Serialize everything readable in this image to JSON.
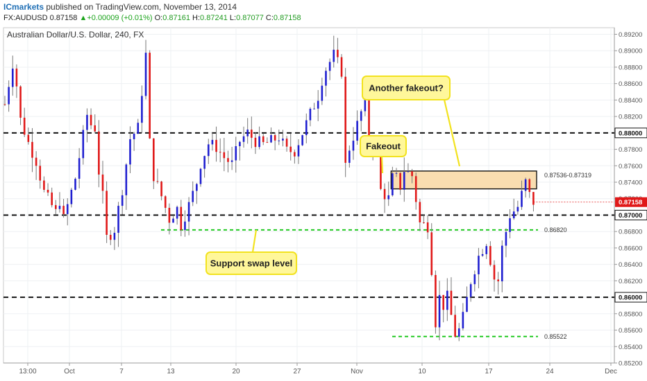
{
  "header": {
    "brand": "ICmarkets",
    "published": "published on TradingView.com, November 13, 2014",
    "symbol": "FX:AUDUSD",
    "last": "0.87158",
    "arrow": "▲",
    "change": "+0.00009 (+0.01%)",
    "o_label": "O:",
    "o_value": "0.87161",
    "h_label": "H:",
    "h_value": "0.87241",
    "l_label": "L:",
    "l_value": "0.87077",
    "c_label": "C:",
    "c_value": "0.87158"
  },
  "colors": {
    "bull": "#1f1fd0",
    "bear": "#e01818",
    "zone_fill": "#f9ddb0",
    "annotation_fill": "#fff79a",
    "annotation_border": "#f2e21e",
    "support_line": "#22c922",
    "last_price": "#e01818"
  },
  "chart_data": {
    "type": "candlestick",
    "title": "Australian Dollar/U.S. Dollar, 240, FX",
    "ylim": [
      0.852,
      0.8928
    ],
    "y_ticks": [
      "0.89200",
      "0.89000",
      "0.88800",
      "0.88600",
      "0.88400",
      "0.88200",
      "0.88000",
      "0.87800",
      "0.87600",
      "0.87400",
      "0.87200",
      "0.87000",
      "0.86800",
      "0.86600",
      "0.86400",
      "0.86200",
      "0.86000",
      "0.85800",
      "0.85600",
      "0.85400",
      "0.85200"
    ],
    "x_ticks": [
      "13:00",
      "Oct",
      "7",
      "13",
      "20",
      "27",
      "Nov",
      "10",
      "17",
      "24",
      "Dec"
    ],
    "last_price": "0.87158",
    "resistance_levels": [
      "0.88000",
      "0.87000",
      "0.86000"
    ],
    "zone": {
      "label": "0.87536-0.87319",
      "top": 0.87536,
      "bottom": 0.87319
    },
    "support_lines": [
      {
        "label": "0.86820",
        "value": 0.8682
      },
      {
        "label": "0.85522",
        "value": 0.85522
      }
    ],
    "annotations": [
      "Another fakeout?",
      "Fakeout",
      "Support swap level"
    ],
    "grid": true,
    "series_points": [
      [
        0,
        0.8835
      ],
      [
        2,
        0.8885
      ],
      [
        3,
        0.8858
      ],
      [
        4,
        0.8816
      ],
      [
        6,
        0.8788
      ],
      [
        8,
        0.8766
      ],
      [
        10,
        0.8728
      ],
      [
        13,
        0.8703
      ],
      [
        14,
        0.8718
      ],
      [
        15,
        0.8695
      ],
      [
        18,
        0.8745
      ],
      [
        21,
        0.8822
      ],
      [
        22,
        0.881
      ],
      [
        23,
        0.8806
      ],
      [
        24,
        0.8753
      ],
      [
        25,
        0.8722
      ],
      [
        26,
        0.8672
      ],
      [
        28,
        0.8683
      ],
      [
        30,
        0.8732
      ],
      [
        32,
        0.8793
      ],
      [
        34,
        0.8806
      ],
      [
        36,
        0.8895
      ],
      [
        37,
        0.8788
      ],
      [
        38,
        0.8748
      ],
      [
        40,
        0.8723
      ],
      [
        42,
        0.8695
      ],
      [
        44,
        0.8708
      ],
      [
        45,
        0.8688
      ],
      [
        47,
        0.8712
      ],
      [
        49,
        0.874
      ],
      [
        50,
        0.8763
      ],
      [
        52,
        0.8787
      ],
      [
        54,
        0.8783
      ],
      [
        56,
        0.877
      ],
      [
        58,
        0.8762
      ],
      [
        60,
        0.879
      ],
      [
        62,
        0.88
      ],
      [
        64,
        0.879
      ],
      [
        66,
        0.8786
      ],
      [
        68,
        0.879
      ],
      [
        70,
        0.8795
      ],
      [
        72,
        0.8778
      ],
      [
        74,
        0.8778
      ],
      [
        76,
        0.88
      ],
      [
        78,
        0.8823
      ],
      [
        80,
        0.8845
      ],
      [
        81,
        0.8865
      ],
      [
        82,
        0.8878
      ],
      [
        84,
        0.8895
      ],
      [
        86,
        0.8875
      ],
      [
        87,
        0.876
      ],
      [
        88,
        0.8782
      ],
      [
        90,
        0.881
      ],
      [
        92,
        0.884
      ],
      [
        93,
        0.8793
      ],
      [
        95,
        0.8782
      ],
      [
        96,
        0.873
      ],
      [
        98,
        0.872
      ],
      [
        99,
        0.8745
      ],
      [
        100,
        0.8745
      ],
      [
        101,
        0.8735
      ],
      [
        102,
        0.8755
      ],
      [
        104,
        0.8748
      ],
      [
        106,
        0.869
      ],
      [
        108,
        0.8687
      ],
      [
        109,
        0.8635
      ],
      [
        110,
        0.857
      ],
      [
        111,
        0.86
      ],
      [
        112,
        0.859
      ],
      [
        113,
        0.86
      ],
      [
        115,
        0.8555
      ],
      [
        116,
        0.856
      ],
      [
        117,
        0.8575
      ],
      [
        119,
        0.862
      ],
      [
        121,
        0.865
      ],
      [
        123,
        0.8668
      ],
      [
        125,
        0.8623
      ],
      [
        126,
        0.862
      ],
      [
        127,
        0.866
      ],
      [
        129,
        0.87
      ],
      [
        131,
        0.871
      ],
      [
        133,
        0.874
      ],
      [
        134,
        0.8724
      ],
      [
        135,
        0.8716
      ]
    ]
  }
}
